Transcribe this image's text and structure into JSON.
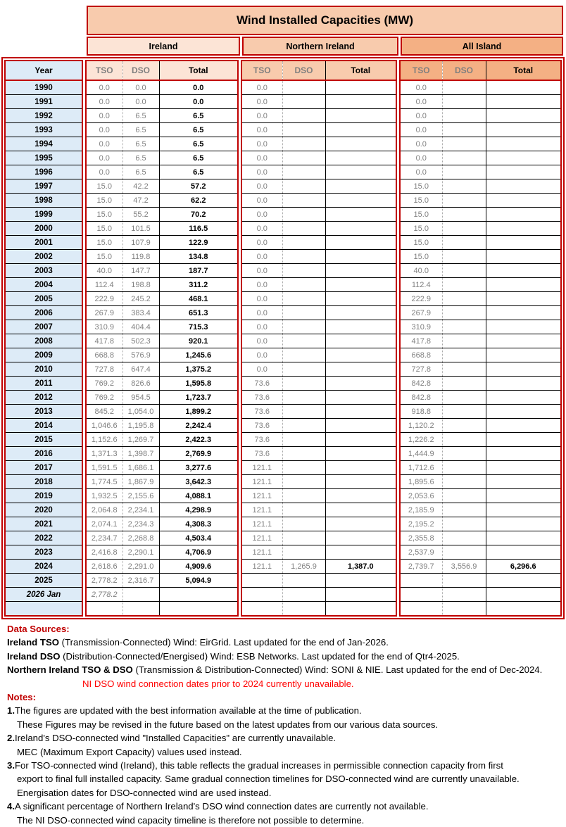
{
  "title": "Wind Installed Capacities (MW)",
  "groups": {
    "ireland": "Ireland",
    "northern_ireland": "Northern Ireland",
    "all_island": "All Island"
  },
  "columns": {
    "year": "Year",
    "tso": "TSO",
    "dso": "DSO",
    "total": "Total"
  },
  "colors": {
    "border": "#C00000",
    "title_bg": "#F8CBAD",
    "ireland_bg": "#FCE4D6",
    "northern_ireland_bg": "#F8CBAD",
    "all_island_bg": "#F4B084",
    "year_bg": "#DDEBF7",
    "muted_text": "#808080",
    "heading_red": "#C00000",
    "note_red": "#FF0000"
  },
  "rows": [
    {
      "year": "1990",
      "ie": [
        "0.0",
        "0.0",
        "0.0"
      ],
      "ni": [
        "0.0",
        "",
        ""
      ],
      "ai": [
        "0.0",
        "",
        ""
      ]
    },
    {
      "year": "1991",
      "ie": [
        "0.0",
        "0.0",
        "0.0"
      ],
      "ni": [
        "0.0",
        "",
        ""
      ],
      "ai": [
        "0.0",
        "",
        ""
      ]
    },
    {
      "year": "1992",
      "ie": [
        "0.0",
        "6.5",
        "6.5"
      ],
      "ni": [
        "0.0",
        "",
        ""
      ],
      "ai": [
        "0.0",
        "",
        ""
      ]
    },
    {
      "year": "1993",
      "ie": [
        "0.0",
        "6.5",
        "6.5"
      ],
      "ni": [
        "0.0",
        "",
        ""
      ],
      "ai": [
        "0.0",
        "",
        ""
      ]
    },
    {
      "year": "1994",
      "ie": [
        "0.0",
        "6.5",
        "6.5"
      ],
      "ni": [
        "0.0",
        "",
        ""
      ],
      "ai": [
        "0.0",
        "",
        ""
      ]
    },
    {
      "year": "1995",
      "ie": [
        "0.0",
        "6.5",
        "6.5"
      ],
      "ni": [
        "0.0",
        "",
        ""
      ],
      "ai": [
        "0.0",
        "",
        ""
      ]
    },
    {
      "year": "1996",
      "ie": [
        "0.0",
        "6.5",
        "6.5"
      ],
      "ni": [
        "0.0",
        "",
        ""
      ],
      "ai": [
        "0.0",
        "",
        ""
      ]
    },
    {
      "year": "1997",
      "ie": [
        "15.0",
        "42.2",
        "57.2"
      ],
      "ni": [
        "0.0",
        "",
        ""
      ],
      "ai": [
        "15.0",
        "",
        ""
      ]
    },
    {
      "year": "1998",
      "ie": [
        "15.0",
        "47.2",
        "62.2"
      ],
      "ni": [
        "0.0",
        "",
        ""
      ],
      "ai": [
        "15.0",
        "",
        ""
      ]
    },
    {
      "year": "1999",
      "ie": [
        "15.0",
        "55.2",
        "70.2"
      ],
      "ni": [
        "0.0",
        "",
        ""
      ],
      "ai": [
        "15.0",
        "",
        ""
      ]
    },
    {
      "year": "2000",
      "ie": [
        "15.0",
        "101.5",
        "116.5"
      ],
      "ni": [
        "0.0",
        "",
        ""
      ],
      "ai": [
        "15.0",
        "",
        ""
      ]
    },
    {
      "year": "2001",
      "ie": [
        "15.0",
        "107.9",
        "122.9"
      ],
      "ni": [
        "0.0",
        "",
        ""
      ],
      "ai": [
        "15.0",
        "",
        ""
      ]
    },
    {
      "year": "2002",
      "ie": [
        "15.0",
        "119.8",
        "134.8"
      ],
      "ni": [
        "0.0",
        "",
        ""
      ],
      "ai": [
        "15.0",
        "",
        ""
      ]
    },
    {
      "year": "2003",
      "ie": [
        "40.0",
        "147.7",
        "187.7"
      ],
      "ni": [
        "0.0",
        "",
        ""
      ],
      "ai": [
        "40.0",
        "",
        ""
      ]
    },
    {
      "year": "2004",
      "ie": [
        "112.4",
        "198.8",
        "311.2"
      ],
      "ni": [
        "0.0",
        "",
        ""
      ],
      "ai": [
        "112.4",
        "",
        ""
      ]
    },
    {
      "year": "2005",
      "ie": [
        "222.9",
        "245.2",
        "468.1"
      ],
      "ni": [
        "0.0",
        "",
        ""
      ],
      "ai": [
        "222.9",
        "",
        ""
      ]
    },
    {
      "year": "2006",
      "ie": [
        "267.9",
        "383.4",
        "651.3"
      ],
      "ni": [
        "0.0",
        "",
        ""
      ],
      "ai": [
        "267.9",
        "",
        ""
      ]
    },
    {
      "year": "2007",
      "ie": [
        "310.9",
        "404.4",
        "715.3"
      ],
      "ni": [
        "0.0",
        "",
        ""
      ],
      "ai": [
        "310.9",
        "",
        ""
      ]
    },
    {
      "year": "2008",
      "ie": [
        "417.8",
        "502.3",
        "920.1"
      ],
      "ni": [
        "0.0",
        "",
        ""
      ],
      "ai": [
        "417.8",
        "",
        ""
      ]
    },
    {
      "year": "2009",
      "ie": [
        "668.8",
        "576.9",
        "1,245.6"
      ],
      "ni": [
        "0.0",
        "",
        ""
      ],
      "ai": [
        "668.8",
        "",
        ""
      ]
    },
    {
      "year": "2010",
      "ie": [
        "727.8",
        "647.4",
        "1,375.2"
      ],
      "ni": [
        "0.0",
        "",
        ""
      ],
      "ai": [
        "727.8",
        "",
        ""
      ]
    },
    {
      "year": "2011",
      "ie": [
        "769.2",
        "826.6",
        "1,595.8"
      ],
      "ni": [
        "73.6",
        "",
        ""
      ],
      "ai": [
        "842.8",
        "",
        ""
      ]
    },
    {
      "year": "2012",
      "ie": [
        "769.2",
        "954.5",
        "1,723.7"
      ],
      "ni": [
        "73.6",
        "",
        ""
      ],
      "ai": [
        "842.8",
        "",
        ""
      ]
    },
    {
      "year": "2013",
      "ie": [
        "845.2",
        "1,054.0",
        "1,899.2"
      ],
      "ni": [
        "73.6",
        "",
        ""
      ],
      "ai": [
        "918.8",
        "",
        ""
      ]
    },
    {
      "year": "2014",
      "ie": [
        "1,046.6",
        "1,195.8",
        "2,242.4"
      ],
      "ni": [
        "73.6",
        "",
        ""
      ],
      "ai": [
        "1,120.2",
        "",
        ""
      ]
    },
    {
      "year": "2015",
      "ie": [
        "1,152.6",
        "1,269.7",
        "2,422.3"
      ],
      "ni": [
        "73.6",
        "",
        ""
      ],
      "ai": [
        "1,226.2",
        "",
        ""
      ]
    },
    {
      "year": "2016",
      "ie": [
        "1,371.3",
        "1,398.7",
        "2,769.9"
      ],
      "ni": [
        "73.6",
        "",
        ""
      ],
      "ai": [
        "1,444.9",
        "",
        ""
      ]
    },
    {
      "year": "2017",
      "ie": [
        "1,591.5",
        "1,686.1",
        "3,277.6"
      ],
      "ni": [
        "121.1",
        "",
        ""
      ],
      "ai": [
        "1,712.6",
        "",
        ""
      ]
    },
    {
      "year": "2018",
      "ie": [
        "1,774.5",
        "1,867.9",
        "3,642.3"
      ],
      "ni": [
        "121.1",
        "",
        ""
      ],
      "ai": [
        "1,895.6",
        "",
        ""
      ]
    },
    {
      "year": "2019",
      "ie": [
        "1,932.5",
        "2,155.6",
        "4,088.1"
      ],
      "ni": [
        "121.1",
        "",
        ""
      ],
      "ai": [
        "2,053.6",
        "",
        ""
      ]
    },
    {
      "year": "2020",
      "ie": [
        "2,064.8",
        "2,234.1",
        "4,298.9"
      ],
      "ni": [
        "121.1",
        "",
        ""
      ],
      "ai": [
        "2,185.9",
        "",
        ""
      ]
    },
    {
      "year": "2021",
      "ie": [
        "2,074.1",
        "2,234.3",
        "4,308.3"
      ],
      "ni": [
        "121.1",
        "",
        ""
      ],
      "ai": [
        "2,195.2",
        "",
        ""
      ]
    },
    {
      "year": "2022",
      "ie": [
        "2,234.7",
        "2,268.8",
        "4,503.4"
      ],
      "ni": [
        "121.1",
        "",
        ""
      ],
      "ai": [
        "2,355.8",
        "",
        ""
      ]
    },
    {
      "year": "2023",
      "ie": [
        "2,416.8",
        "2,290.1",
        "4,706.9"
      ],
      "ni": [
        "121.1",
        "",
        ""
      ],
      "ai": [
        "2,537.9",
        "",
        ""
      ]
    },
    {
      "year": "2024",
      "ie": [
        "2,618.6",
        "2,291.0",
        "4,909.6"
      ],
      "ni": [
        "121.1",
        "1,265.9",
        "1,387.0"
      ],
      "ai": [
        "2,739.7",
        "3,556.9",
        "6,296.6"
      ]
    },
    {
      "year": "2025",
      "ie": [
        "2,778.2",
        "2,316.7",
        "5,094.9"
      ],
      "ni": [
        "",
        "",
        ""
      ],
      "ai": [
        "",
        "",
        ""
      ]
    },
    {
      "year": "2026 Jan",
      "italic": true,
      "ie": [
        "2,778.2",
        "",
        ""
      ],
      "ni": [
        "",
        "",
        ""
      ],
      "ai": [
        "",
        "",
        ""
      ]
    },
    {
      "year": "",
      "ie": [
        "",
        "",
        ""
      ],
      "ni": [
        "",
        "",
        ""
      ],
      "ai": [
        "",
        "",
        ""
      ]
    }
  ],
  "footer": {
    "sources_heading": "Data Sources:",
    "sources": [
      {
        "bold": "Ireland TSO",
        "rest": " (Transmission-Connected) Wind: EirGrid. Last updated for the end of Jan-2026."
      },
      {
        "bold": "Ireland DSO",
        "rest": " (Distribution-Connected/Energised) Wind: ESB Networks. Last updated for the end of Qtr4-2025."
      },
      {
        "bold": "Northern Ireland TSO & DSO",
        "rest": " (Transmission & Distribution-Connected) Wind: SONI & NIE. Last updated for the end of Dec-2024."
      }
    ],
    "red_note": "NI DSO wind connection dates prior to 2024 currently unavailable.",
    "notes_heading": "Notes:",
    "notes": [
      {
        "num": "1.",
        "lines": [
          "The figures are updated with the best information available at the time of publication.",
          "These Figures may be revised in the future based on the latest updates from our various data sources."
        ]
      },
      {
        "num": "2.",
        "lines": [
          "Ireland's DSO-connected wind \"Installed Capacities\" are currently unavailable.",
          "MEC (Maximum Export Capacity) values used instead."
        ]
      },
      {
        "num": "3.",
        "lines": [
          "For TSO-connected wind (Ireland), this table reflects the gradual increases in permissible connection capacity from first",
          "export to final full installed capacity. Same gradual connection timelines for DSO-connected wind are currently unavailable.",
          "Energisation dates for DSO-connected wind are used instead."
        ]
      },
      {
        "num": "4.",
        "lines": [
          "A significant percentage of Northern Ireland's DSO wind connection dates are currently not available.",
          "The NI DSO-connected wind capacity timeline is therefore not possible to determine."
        ]
      }
    ]
  }
}
